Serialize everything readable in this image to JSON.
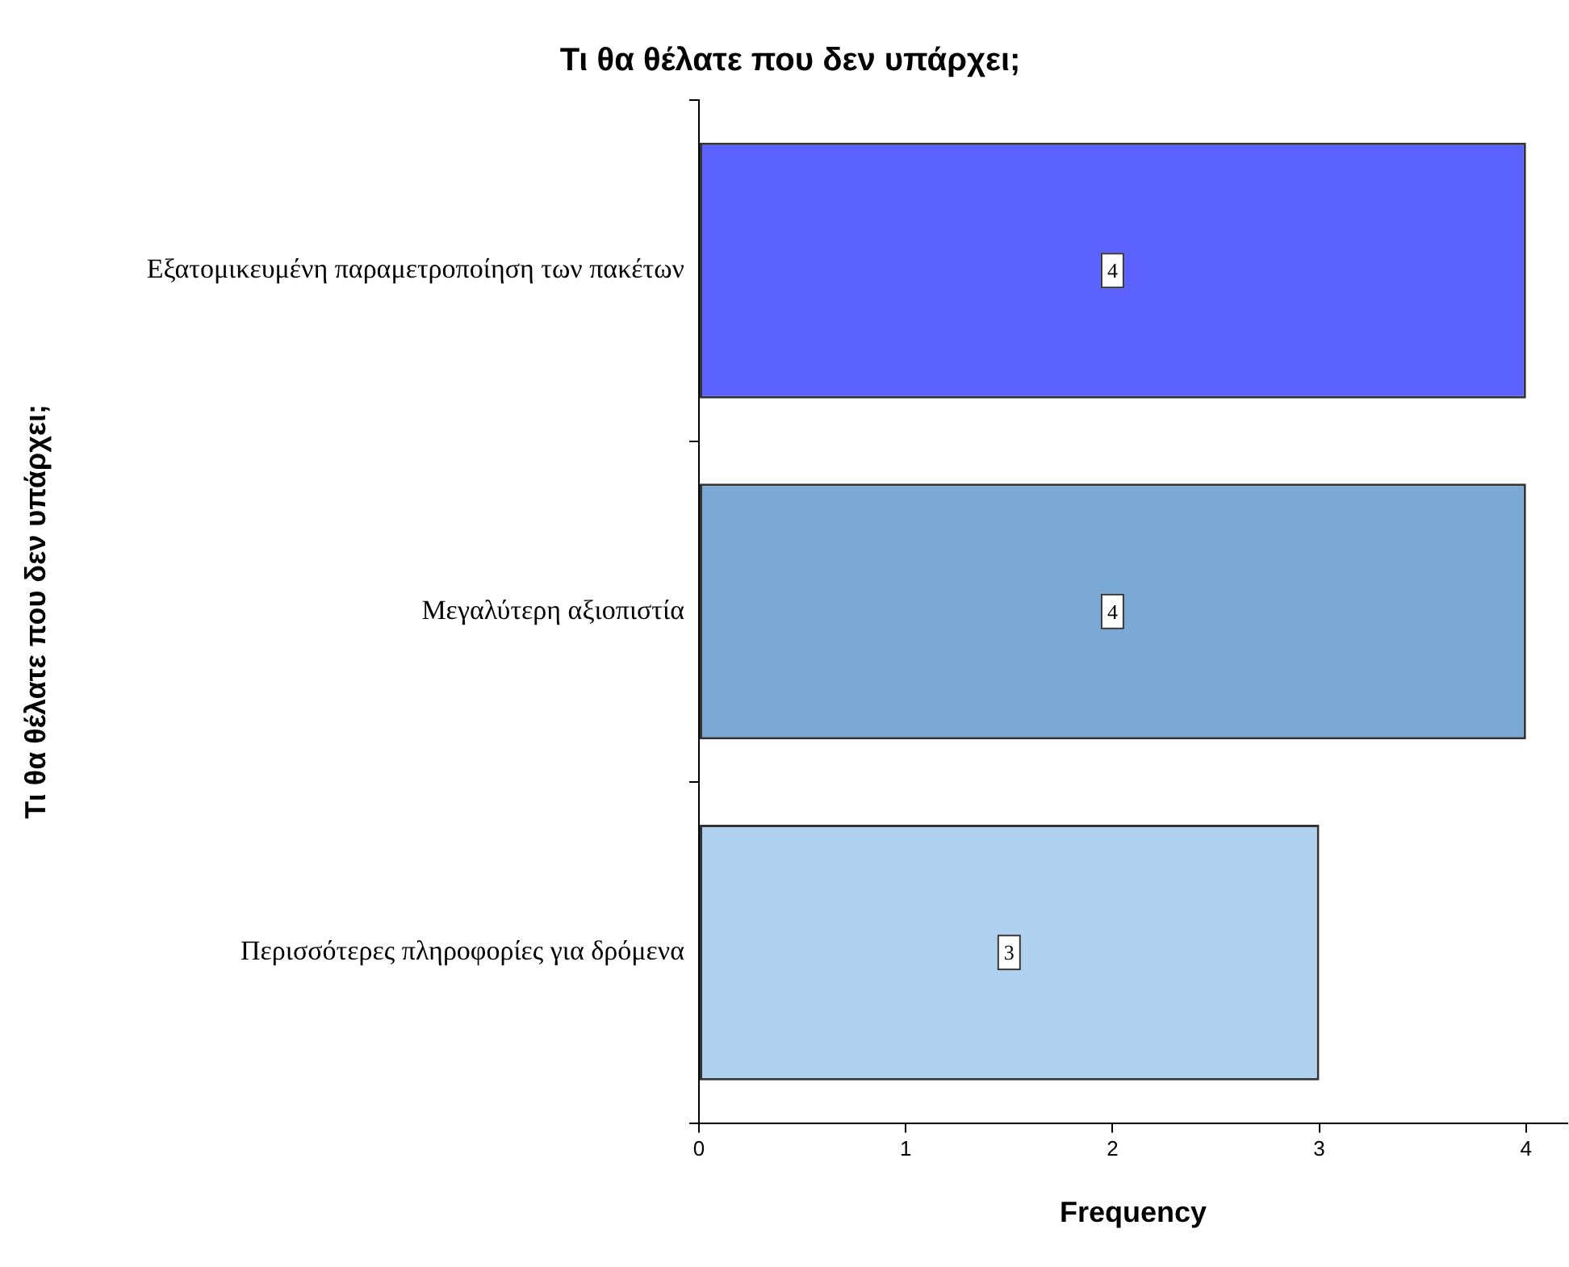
{
  "chart_data": {
    "type": "bar",
    "orientation": "horizontal",
    "title": "Τι θα θέλατε που δεν υπάρχει;",
    "xlabel": "Frequency",
    "ylabel": "Τι θα θέλατε που δεν υπάρχει;",
    "categories": [
      "Εξατομικευμένη παραμετροποίηση των πακέτων",
      "Μεγαλύτερη αξιοπιστία",
      "Περισσότερες πληροφορίες για δρόμενα"
    ],
    "values": [
      4,
      4,
      3
    ],
    "colors": [
      "#5c62fe",
      "#7ba9d6",
      "#afd0ee"
    ],
    "xlim": [
      0,
      4.2
    ],
    "xticks": [
      0,
      1,
      2,
      3,
      4
    ],
    "data_labels": true,
    "legend": false,
    "grid": false
  }
}
